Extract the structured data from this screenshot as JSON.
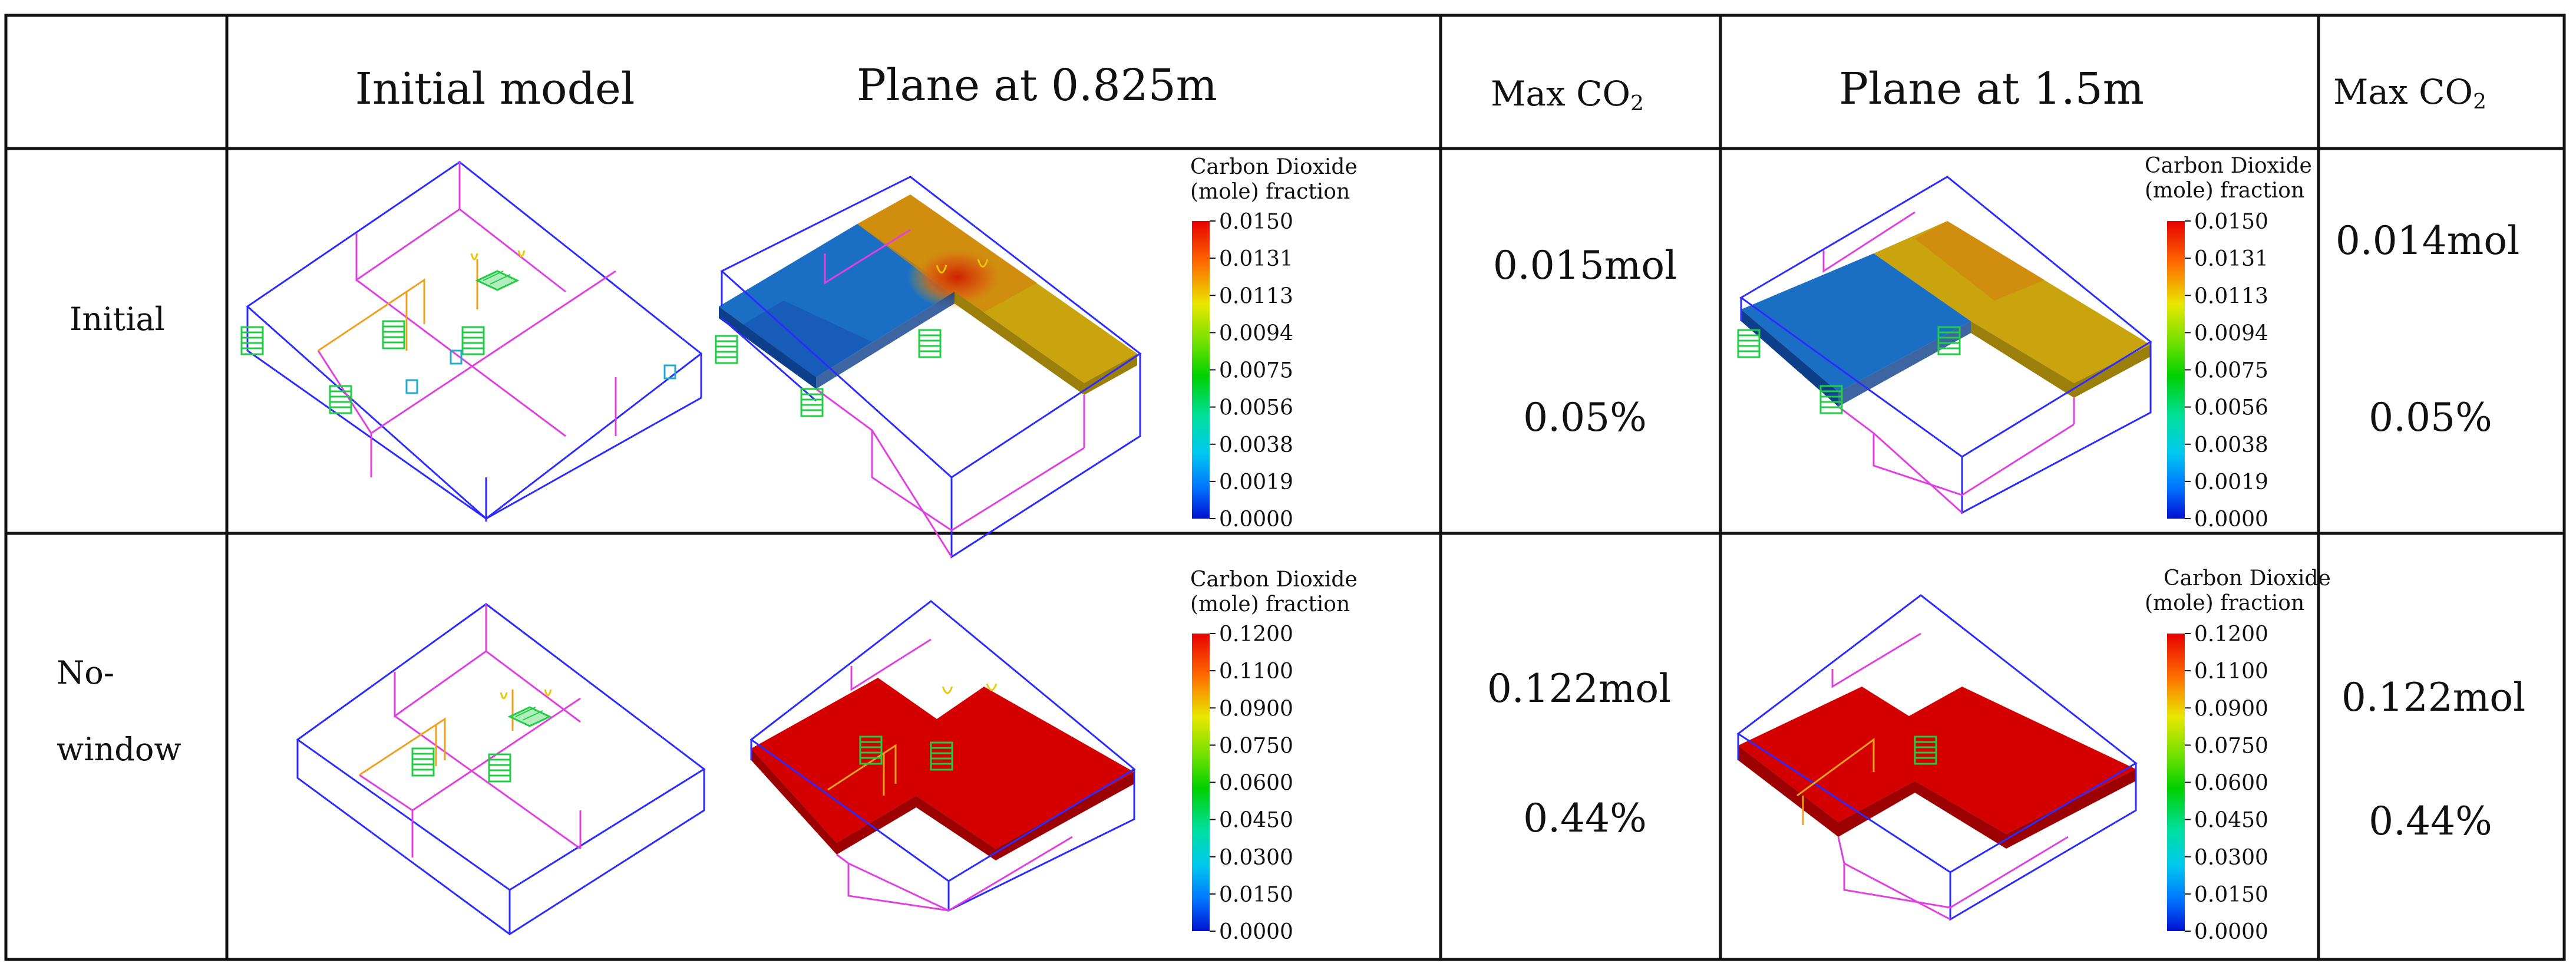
{
  "header": {
    "initial_model": "Initial model",
    "plane_low": "Plane at 0.825m",
    "max_co2_a": "Max CO",
    "max_co2_a_sub": "2",
    "plane_high": "Plane at 1.5m",
    "max_co2_b": "Max CO",
    "max_co2_b_sub": "2"
  },
  "rows": [
    {
      "label": "Initial",
      "low_max_mol": "0.015mol",
      "low_max_pct": "0.05%",
      "high_max_mol": "0.014mol",
      "high_max_pct": "0.05%"
    },
    {
      "label_line1": "No-",
      "label_line2": "window",
      "low_max_mol": "0.122mol",
      "low_max_pct": "0.44%",
      "high_max_mol": "0.122mol",
      "high_max_pct": "0.44%"
    }
  ],
  "legend_initial": {
    "title_line1": "Carbon Dioxide",
    "title_line2": "(mole) fraction",
    "ticks": [
      "0.0150",
      "0.0131",
      "0.0113",
      "0.0094",
      "0.0075",
      "0.0056",
      "0.0038",
      "0.0019",
      "0.0000"
    ]
  },
  "legend_nowindow": {
    "title_line1": "Carbon Dioxide",
    "title_line2": "(mole) fraction",
    "ticks": [
      "0.1200",
      "0.1100",
      "0.0900",
      "0.0750",
      "0.0600",
      "0.0450",
      "0.0300",
      "0.0150",
      "0.0000"
    ]
  },
  "colors": {
    "wire_outer": "#2b2bff",
    "wire_inner": "#e040e0",
    "wire_orange": "#f0a020",
    "diffuser": "#22cc44",
    "co2_low": "#1a6fc4",
    "co2_mid": "#c9a40e",
    "co2_high": "#d40000"
  }
}
